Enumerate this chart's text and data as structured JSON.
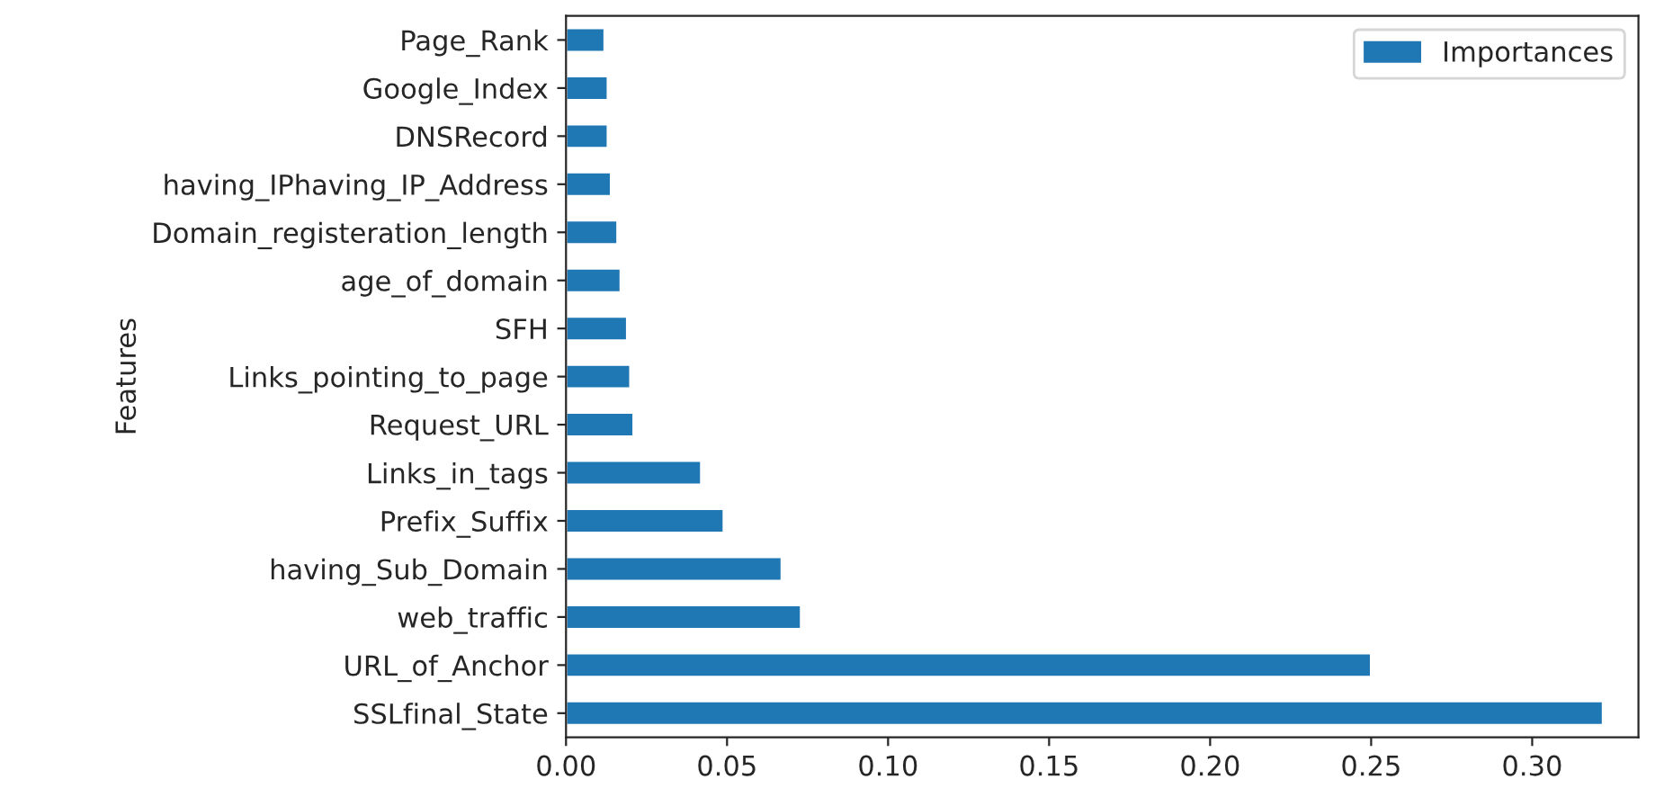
{
  "chart_data": {
    "type": "bar",
    "orientation": "horizontal",
    "ylabel": "Features",
    "categories": [
      "Page_Rank",
      "Google_Index",
      "DNSRecord",
      "having_IPhaving_IP_Address",
      "Domain_registeration_length",
      "age_of_domain",
      "SFH",
      "Links_pointing_to_page",
      "Request_URL",
      "Links_in_tags",
      "Prefix_Suffix",
      "having_Sub_Domain",
      "web_traffic",
      "URL_of_Anchor",
      "SSLfinal_State"
    ],
    "series": [
      {
        "name": "Importances",
        "color": "#1f77b4",
        "values": [
          0.012,
          0.013,
          0.013,
          0.014,
          0.016,
          0.017,
          0.019,
          0.02,
          0.021,
          0.042,
          0.049,
          0.067,
          0.073,
          0.25,
          0.322
        ]
      }
    ],
    "xlim": [
      0,
      0.333
    ],
    "xticks": [
      {
        "value": 0,
        "label": "0.00"
      },
      {
        "value": 0.05,
        "label": "0.05"
      },
      {
        "value": 0.1,
        "label": "0.10"
      },
      {
        "value": 0.15,
        "label": "0.15"
      },
      {
        "value": 0.2,
        "label": "0.20"
      },
      {
        "value": 0.25,
        "label": "0.25"
      },
      {
        "value": 0.3,
        "label": "0.30"
      }
    ],
    "legend": "top right",
    "grid": false
  }
}
